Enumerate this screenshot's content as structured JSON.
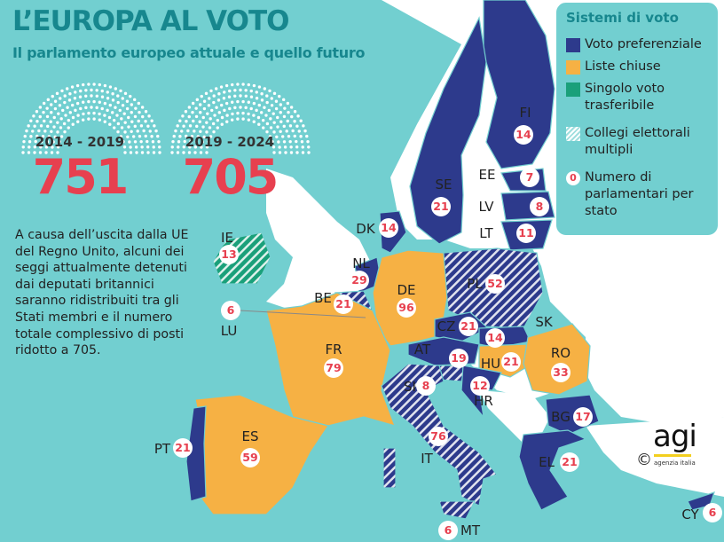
{
  "header": {
    "title": "L’EUROPA AL VOTO",
    "subtitle": "Il parlamento europeo attuale e quello futuro"
  },
  "parliaments": [
    {
      "period": "2014 - 2019",
      "seats": "751"
    },
    {
      "period": "2019 - 2024",
      "seats": "705"
    }
  ],
  "note": "A causa dell’uscita dalla UE del Regno Unito, alcuni dei seggi attualmente detenuti dai deputati britannici saranno ridistribuiti tra gli Stati membri e il numero totale complessivo di posti ridotto a 705.",
  "legend": {
    "title": "Sistemi di voto",
    "items": [
      {
        "label": "Voto preferenziale",
        "color": "#2d3a8c"
      },
      {
        "label": "Liste chiuse",
        "color": "#f6b144"
      },
      {
        "label": "Singolo voto trasferibile",
        "color": "#1aa07a"
      },
      {
        "label": "Collegi elettorali multipli",
        "pattern": "hatched"
      },
      {
        "label": "Numero di parlamentari per stato",
        "badge": "0"
      }
    ]
  },
  "countries": [
    {
      "code": "FI",
      "seats": "14",
      "system": "Voto preferenziale"
    },
    {
      "code": "SE",
      "seats": "21",
      "system": "Voto preferenziale"
    },
    {
      "code": "EE",
      "seats": "7",
      "system": "Voto preferenziale"
    },
    {
      "code": "LV",
      "seats": "8",
      "system": "Voto preferenziale"
    },
    {
      "code": "LT",
      "seats": "11",
      "system": "Voto preferenziale"
    },
    {
      "code": "DK",
      "seats": "14",
      "system": "Voto preferenziale"
    },
    {
      "code": "IE",
      "seats": "13",
      "system": "Singolo voto trasferibile",
      "multiple_constituencies": true
    },
    {
      "code": "NL",
      "seats": "29",
      "system": "Voto preferenziale"
    },
    {
      "code": "BE",
      "seats": "21",
      "system": "Voto preferenziale",
      "multiple_constituencies": true
    },
    {
      "code": "LU",
      "seats": "6",
      "system": "Voto preferenziale"
    },
    {
      "code": "DE",
      "seats": "96",
      "system": "Liste chiuse"
    },
    {
      "code": "PL",
      "seats": "52",
      "system": "Voto preferenziale",
      "multiple_constituencies": true
    },
    {
      "code": "CZ",
      "seats": "21",
      "system": "Voto preferenziale"
    },
    {
      "code": "SK",
      "seats": "14",
      "system": "Voto preferenziale"
    },
    {
      "code": "AT",
      "seats": "19",
      "system": "Voto preferenziale"
    },
    {
      "code": "HU",
      "seats": "21",
      "system": "Liste chiuse"
    },
    {
      "code": "RO",
      "seats": "33",
      "system": "Liste chiuse"
    },
    {
      "code": "SI",
      "seats": "8",
      "system": "Voto preferenziale"
    },
    {
      "code": "HR",
      "seats": "12",
      "system": "Voto preferenziale"
    },
    {
      "code": "BG",
      "seats": "17",
      "system": "Voto preferenziale"
    },
    {
      "code": "FR",
      "seats": "79",
      "system": "Liste chiuse"
    },
    {
      "code": "ES",
      "seats": "59",
      "system": "Liste chiuse"
    },
    {
      "code": "PT",
      "seats": "21",
      "system": "Voto preferenziale"
    },
    {
      "code": "IT",
      "seats": "76",
      "system": "Voto preferenziale",
      "multiple_constituencies": true
    },
    {
      "code": "EL",
      "seats": "21",
      "system": "Voto preferenziale"
    },
    {
      "code": "MT",
      "seats": "6",
      "system": "Voto preferenziale"
    },
    {
      "code": "CY",
      "seats": "6",
      "system": "Voto preferenziale"
    }
  ],
  "logo": {
    "text": "agi",
    "tagline": "agenzia italia",
    "copyright": "©"
  },
  "colors": {
    "sea": "#72cfd0",
    "land": "#ffffff",
    "preferential": "#2d3a8c",
    "closed_lists": "#f6b144",
    "stv": "#1aa07a",
    "badge_text": "#e7404f",
    "title": "#17878e"
  }
}
